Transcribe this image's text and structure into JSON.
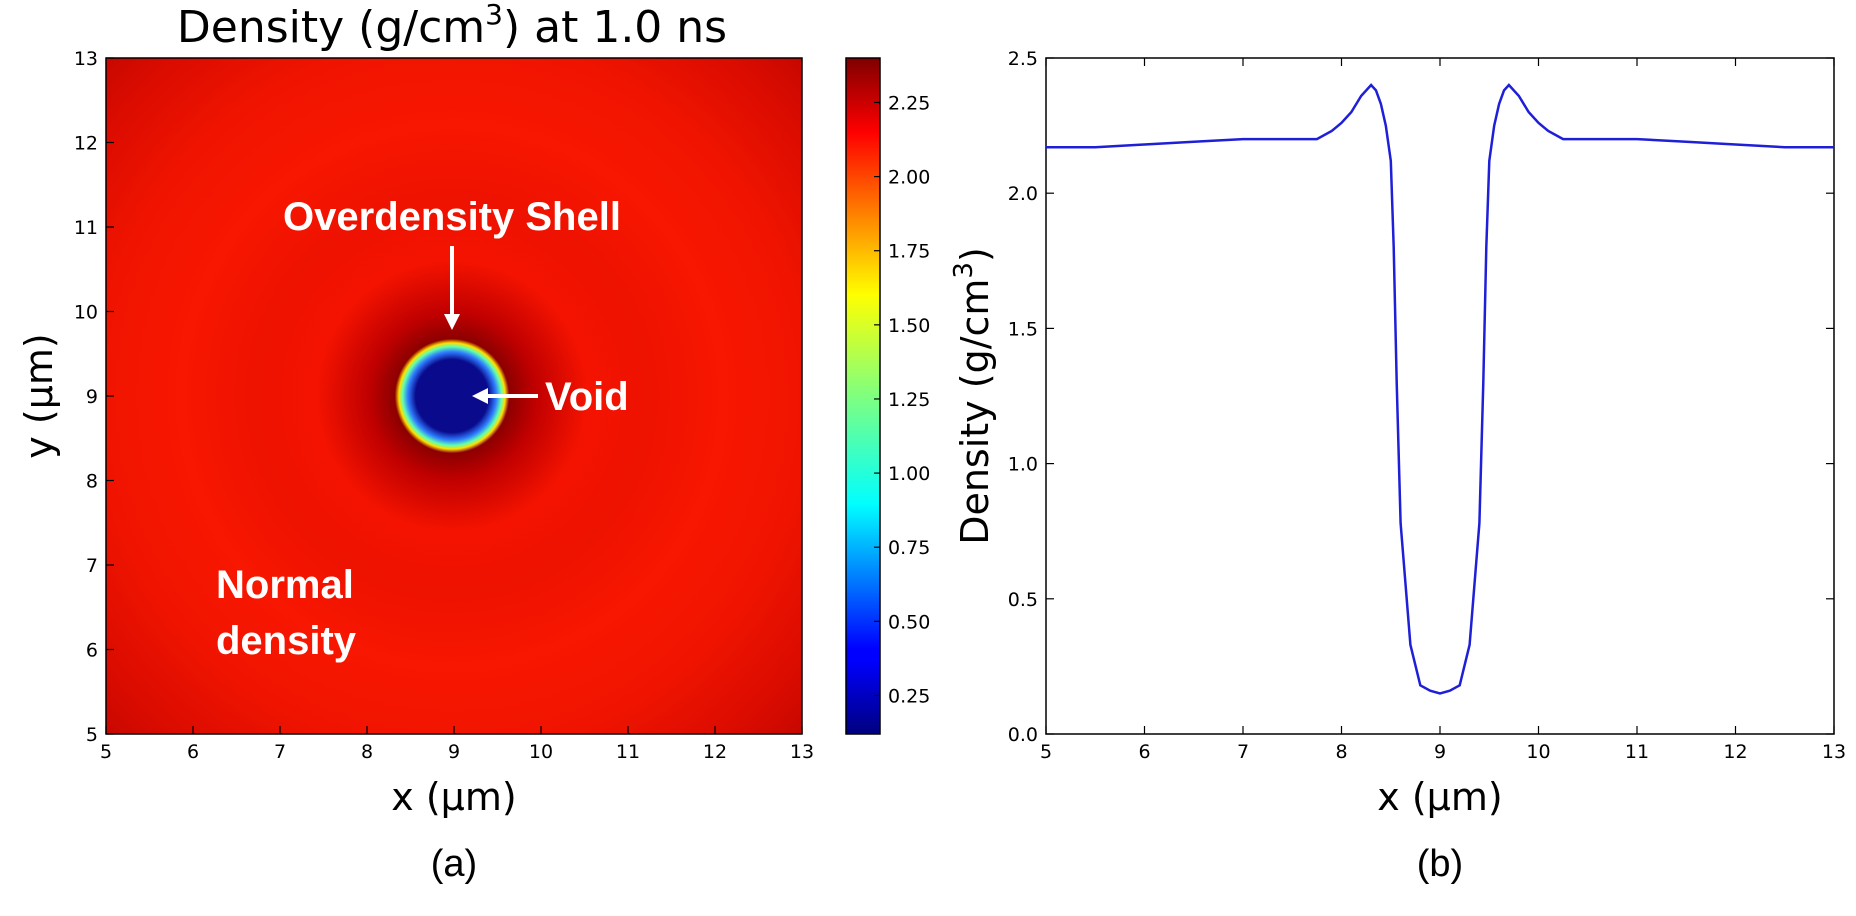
{
  "chart_data": [
    {
      "type": "heatmap",
      "title": "Density (g/cm",
      "title_sup": "3",
      "title_suffix": ") at 1.0 ns",
      "xlabel": "x (μm)",
      "ylabel": "y (μm)",
      "xlim": [
        5,
        13
      ],
      "ylim": [
        5,
        13
      ],
      "xticks": [
        "5",
        "6",
        "7",
        "8",
        "9",
        "10",
        "11",
        "12",
        "13"
      ],
      "yticks": [
        "5",
        "6",
        "7",
        "8",
        "9",
        "10",
        "11",
        "12",
        "13"
      ],
      "colormap": "jet",
      "colorbar": {
        "range": [
          0.12,
          2.4
        ],
        "ticks": [
          "0.25",
          "0.50",
          "0.75",
          "1.00",
          "1.25",
          "1.50",
          "1.75",
          "2.00",
          "2.25"
        ]
      },
      "void_center": [
        9.0,
        9.0
      ],
      "void_radius": 0.4,
      "annotations": {
        "shell": "Overdensity Shell",
        "void": "Void",
        "normal_line1": "Normal",
        "normal_line2": "density"
      },
      "panel_label": "(a)"
    },
    {
      "type": "line",
      "xlabel": "x (μm)",
      "ylabel": "Density (g/cm",
      "ylabel_sup": "3",
      "ylabel_suffix": ")",
      "xlim": [
        5,
        13
      ],
      "ylim": [
        0,
        2.5
      ],
      "xticks": [
        "5",
        "6",
        "7",
        "8",
        "9",
        "10",
        "11",
        "12",
        "13"
      ],
      "yticks": [
        "0.0",
        "0.5",
        "1.0",
        "1.5",
        "2.0",
        "2.5"
      ],
      "series": [
        {
          "color": "#1f1fd8",
          "x": [
            5.0,
            5.5,
            6.0,
            6.5,
            7.0,
            7.5,
            7.75,
            7.9,
            8.0,
            8.1,
            8.2,
            8.3,
            8.35,
            8.4,
            8.45,
            8.5,
            8.53,
            8.56,
            8.6,
            8.7,
            8.8,
            8.9,
            9.0,
            9.1,
            9.2,
            9.3,
            9.4,
            9.44,
            9.47,
            9.5,
            9.55,
            9.6,
            9.65,
            9.7,
            9.8,
            9.9,
            10.0,
            10.1,
            10.25,
            10.5,
            11.0,
            11.5,
            12.0,
            12.5,
            13.0
          ],
          "y": [
            2.17,
            2.17,
            2.18,
            2.19,
            2.2,
            2.2,
            2.2,
            2.23,
            2.26,
            2.3,
            2.36,
            2.4,
            2.38,
            2.33,
            2.25,
            2.12,
            1.8,
            1.3,
            0.78,
            0.33,
            0.18,
            0.16,
            0.15,
            0.16,
            0.18,
            0.33,
            0.78,
            1.3,
            1.8,
            2.12,
            2.25,
            2.33,
            2.38,
            2.4,
            2.36,
            2.3,
            2.26,
            2.23,
            2.2,
            2.2,
            2.2,
            2.19,
            2.18,
            2.17,
            2.17
          ]
        }
      ],
      "panel_label": "(b)"
    }
  ]
}
